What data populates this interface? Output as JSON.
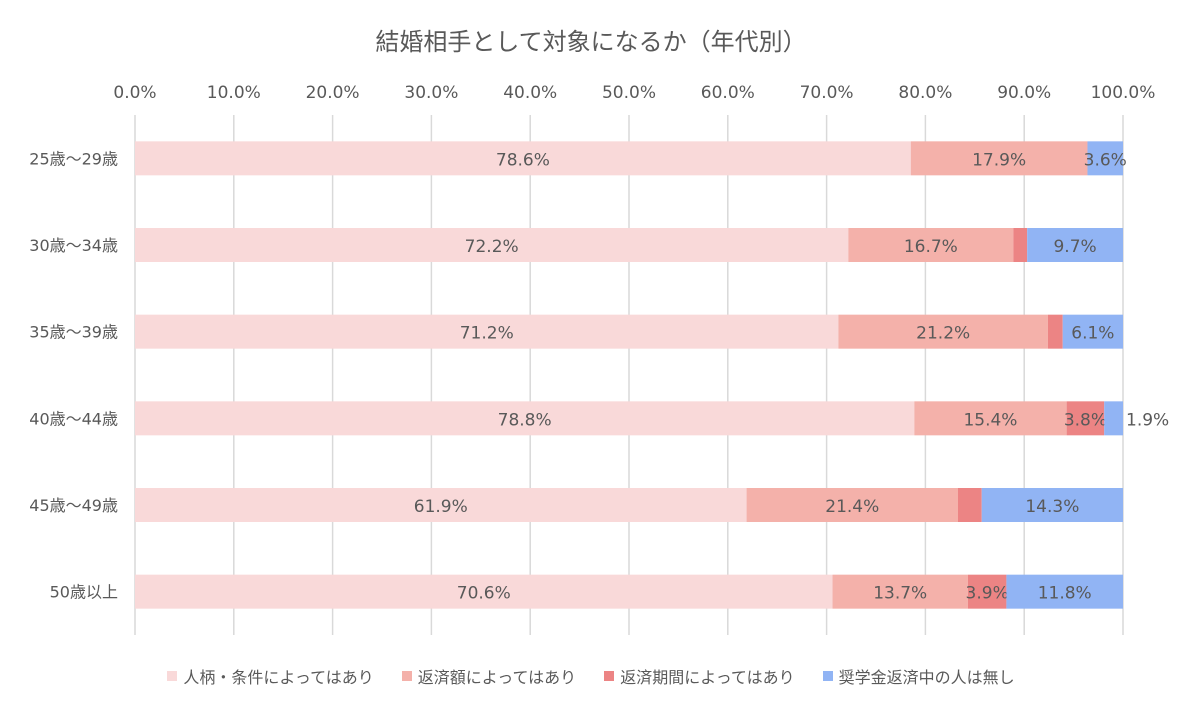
{
  "chart_data": {
    "type": "bar",
    "orientation": "horizontal",
    "stacked": "percent",
    "title": "結婚相手として対象になるか（年代別）",
    "categories": [
      "25歳～29歳",
      "30歳～34歳",
      "35歳～39歳",
      "40歳～44歳",
      "45歳～49歳",
      "50歳以上"
    ],
    "x_ticks": [
      "0.0%",
      "10.0%",
      "20.0%",
      "30.0%",
      "40.0%",
      "50.0%",
      "60.0%",
      "70.0%",
      "80.0%",
      "90.0%",
      "100.0%"
    ],
    "xlim": [
      0,
      100
    ],
    "grid": true,
    "legend_position": "bottom",
    "series": [
      {
        "name": "人柄・条件によってはあり",
        "color": "#f9d9d9",
        "values": [
          78.6,
          72.2,
          71.2,
          78.8,
          61.9,
          70.6
        ],
        "labels": [
          "78.6%",
          "72.2%",
          "71.2%",
          "78.8%",
          "61.9%",
          "70.6%"
        ]
      },
      {
        "name": "返済額によってはあり",
        "color": "#f4b1aa",
        "values": [
          17.9,
          16.7,
          21.2,
          15.4,
          21.4,
          13.7
        ],
        "labels": [
          "17.9%",
          "16.7%",
          "21.2%",
          "15.4%",
          "21.4%",
          "13.7%"
        ]
      },
      {
        "name": "返済期間によってはあり",
        "color": "#ec8484",
        "values": [
          0,
          1.4,
          1.5,
          3.8,
          2.4,
          3.9
        ],
        "labels": [
          "",
          "1.4%",
          "1.5%",
          "3.8%",
          "2.4%",
          "3.9%"
        ]
      },
      {
        "name": "奨学金返済中の人は無し",
        "color": "#91b4f4",
        "values": [
          3.6,
          9.7,
          6.1,
          1.9,
          14.3,
          11.8
        ],
        "labels": [
          "3.6%",
          "9.7%",
          "6.1%",
          "1.9%",
          "14.3%",
          "11.8%"
        ]
      }
    ]
  }
}
